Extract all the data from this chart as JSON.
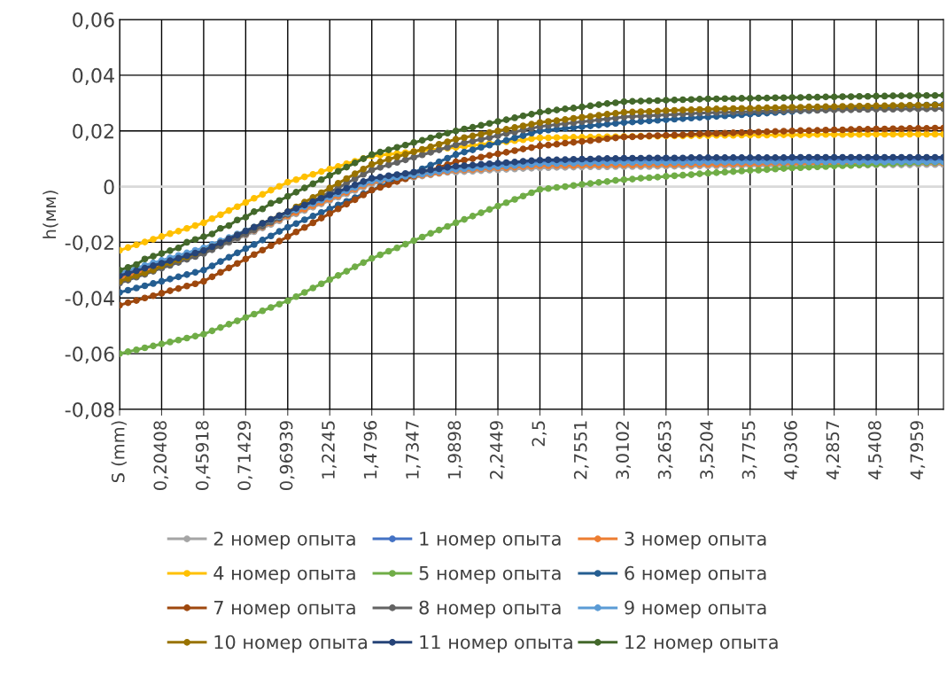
{
  "chart_data": {
    "type": "line",
    "ylabel": "h(мм)",
    "ylim": [
      -0.08,
      0.06
    ],
    "yticks": [
      {
        "value": -0.08,
        "label": "-0,08"
      },
      {
        "value": -0.06,
        "label": "-0,06"
      },
      {
        "value": -0.04,
        "label": "-0,04"
      },
      {
        "value": -0.02,
        "label": "-0,02"
      },
      {
        "value": 0,
        "label": "0"
      },
      {
        "value": 0.02,
        "label": "0,02"
      },
      {
        "value": 0.04,
        "label": "0,04"
      },
      {
        "value": 0.06,
        "label": "0,06"
      }
    ],
    "grid": true,
    "legend": "bottom",
    "marker": "circle",
    "line_style": "solid",
    "ref_lines": [
      {
        "axis": "y",
        "value": 0,
        "color": "#d9d9d9"
      }
    ],
    "categories": [
      "S (mm)",
      null,
      null,
      null,
      null,
      "0,20408",
      null,
      null,
      null,
      null,
      "0,45918",
      null,
      null,
      null,
      null,
      "0,71429",
      null,
      null,
      null,
      null,
      "0,96939",
      null,
      null,
      null,
      null,
      "1,2245",
      null,
      null,
      null,
      null,
      "1,4796",
      null,
      null,
      null,
      null,
      "1,7347",
      null,
      null,
      null,
      null,
      "1,9898",
      null,
      null,
      null,
      null,
      "2,2449",
      null,
      null,
      null,
      null,
      "2,5",
      null,
      null,
      null,
      null,
      "2,7551",
      null,
      null,
      null,
      null,
      "3,0102",
      null,
      null,
      null,
      null,
      "3,2653",
      null,
      null,
      null,
      null,
      "3,5204",
      null,
      null,
      null,
      null,
      "3,7755",
      null,
      null,
      null,
      null,
      "4,0306",
      null,
      null,
      null,
      null,
      "4,2857",
      null,
      null,
      null,
      null,
      "4,5408",
      null,
      null,
      null,
      null,
      "4,7959",
      null,
      null,
      null
    ],
    "series": [
      {
        "name": "2 номер опыта",
        "color": "#a5a5a5",
        "values": [
          -0.034,
          -0.033,
          -0.032,
          -0.031,
          -0.03,
          -0.029,
          -0.028,
          -0.027,
          -0.026,
          -0.025,
          -0.024,
          -0.0227,
          -0.0214,
          -0.0201,
          -0.0188,
          -0.0175,
          -0.0162,
          -0.0149,
          -0.0136,
          -0.0123,
          -0.011,
          -0.0098,
          -0.0086,
          -0.0074,
          -0.0062,
          -0.005,
          -0.0038,
          -0.0026,
          -0.0014,
          -0.0002,
          0.001,
          0.0015,
          0.0019,
          0.0024,
          0.0028,
          0.0033,
          0.0038,
          0.0042,
          0.0047,
          0.0051,
          0.0052,
          0.0054,
          0.0055,
          0.0057,
          0.0059,
          0.006,
          0.0062,
          0.0063,
          0.0065,
          0.0066,
          0.0067,
          0.0068,
          0.0069,
          0.0069,
          0.007,
          0.007,
          0.0071,
          0.0071,
          0.0071,
          0.0072,
          0.0072,
          0.0072,
          0.0072,
          0.0072,
          0.0073,
          0.0073,
          0.0073,
          0.0073,
          0.0073,
          0.0074,
          0.0074,
          0.0074,
          0.0074,
          0.0074,
          0.0075,
          0.0075,
          0.0075,
          0.0075,
          0.0075,
          0.0076,
          0.0076,
          0.0076,
          0.0076,
          0.0076,
          0.0076,
          0.0077,
          0.0077,
          0.0077,
          0.0077,
          0.0077,
          0.0078,
          0.0078,
          0.0078,
          0.0078,
          0.0078,
          0.0079,
          0.0079,
          0.0079,
          0.0079
        ]
      },
      {
        "name": "1 номер опыта",
        "color": "#4472c4",
        "values": [
          -0.0325,
          -0.0316,
          -0.0306,
          -0.0297,
          -0.0287,
          -0.0278,
          -0.0268,
          -0.0259,
          -0.0249,
          -0.024,
          -0.023,
          -0.0217,
          -0.0204,
          -0.019,
          -0.0177,
          -0.0164,
          -0.0151,
          -0.0138,
          -0.0124,
          -0.0111,
          -0.0098,
          -0.0086,
          -0.0074,
          -0.0062,
          -0.005,
          -0.0038,
          -0.0026,
          -0.0014,
          -0.0002,
          0.001,
          0.0022,
          0.0026,
          0.0031,
          0.0035,
          0.004,
          0.0044,
          0.0048,
          0.0053,
          0.0057,
          0.0062,
          0.0068,
          0.007,
          0.0072,
          0.0074,
          0.0076,
          0.0078,
          0.008,
          0.0082,
          0.0084,
          0.0086,
          0.0087,
          0.0088,
          0.0089,
          0.009,
          0.009,
          0.0091,
          0.0092,
          0.0092,
          0.0093,
          0.0093,
          0.0094,
          0.0094,
          0.0094,
          0.0094,
          0.0094,
          0.0094,
          0.0094,
          0.0094,
          0.0094,
          0.0094,
          0.0095,
          0.0095,
          0.0095,
          0.0095,
          0.0095,
          0.0095,
          0.0095,
          0.0095,
          0.0095,
          0.0095,
          0.0096,
          0.0096,
          0.0096,
          0.0096,
          0.0096,
          0.0096,
          0.0096,
          0.0096,
          0.0096,
          0.0096,
          0.0097,
          0.0097,
          0.0097,
          0.0097,
          0.0097,
          0.0097,
          0.0097,
          0.0097,
          0.0097
        ]
      },
      {
        "name": "3 номер опыта",
        "color": "#ed7d31",
        "values": [
          -0.033,
          -0.0321,
          -0.0311,
          -0.0302,
          -0.0292,
          -0.0283,
          -0.0273,
          -0.0264,
          -0.0254,
          -0.0245,
          -0.0235,
          -0.0222,
          -0.0209,
          -0.0196,
          -0.0183,
          -0.017,
          -0.0157,
          -0.0144,
          -0.0131,
          -0.0118,
          -0.0105,
          -0.0093,
          -0.0081,
          -0.0069,
          -0.0057,
          -0.0045,
          -0.0033,
          -0.0021,
          -0.0009,
          0.0003,
          0.0015,
          0.0019,
          0.0024,
          0.0028,
          0.0032,
          0.0037,
          0.0041,
          0.0045,
          0.0049,
          0.0054,
          0.0058,
          0.006,
          0.0061,
          0.0063,
          0.0065,
          0.0067,
          0.0068,
          0.007,
          0.0072,
          0.0073,
          0.0075,
          0.0075,
          0.0076,
          0.0076,
          0.0076,
          0.0077,
          0.0077,
          0.0077,
          0.0078,
          0.0078,
          0.0078,
          0.0078,
          0.0078,
          0.0079,
          0.0079,
          0.0079,
          0.0079,
          0.008,
          0.008,
          0.008,
          0.008,
          0.008,
          0.0081,
          0.0081,
          0.0081,
          0.0081,
          0.0081,
          0.0082,
          0.0082,
          0.0082,
          0.0082,
          0.0082,
          0.0083,
          0.0083,
          0.0083,
          0.0083,
          0.0083,
          0.0084,
          0.0084,
          0.0084,
          0.0084,
          0.0084,
          0.0084,
          0.0085,
          0.0085,
          0.0085,
          0.0085,
          0.0085,
          0.0085
        ]
      },
      {
        "name": "4 номер опыта",
        "color": "#ffc000",
        "values": [
          -0.0229,
          -0.0219,
          -0.0209,
          -0.0199,
          -0.0189,
          -0.0179,
          -0.0169,
          -0.016,
          -0.015,
          -0.014,
          -0.013,
          -0.0115,
          -0.0101,
          -0.0086,
          -0.0072,
          -0.0057,
          -0.0042,
          -0.0028,
          -0.0013,
          0.0001,
          0.0016,
          0.0025,
          0.0035,
          0.0044,
          0.0054,
          0.0063,
          0.0072,
          0.0082,
          0.0091,
          0.0101,
          0.011,
          0.0113,
          0.0116,
          0.0119,
          0.0122,
          0.0126,
          0.0129,
          0.0132,
          0.0135,
          0.0138,
          0.0141,
          0.0144,
          0.0148,
          0.0151,
          0.0155,
          0.0158,
          0.0161,
          0.0165,
          0.0168,
          0.0172,
          0.0175,
          0.0175,
          0.0176,
          0.0176,
          0.0177,
          0.0177,
          0.0178,
          0.0178,
          0.0179,
          0.0179,
          0.018,
          0.018,
          0.0181,
          0.0181,
          0.0181,
          0.0182,
          0.0182,
          0.0182,
          0.0183,
          0.0183,
          0.0183,
          0.0184,
          0.0184,
          0.0184,
          0.0185,
          0.0185,
          0.0185,
          0.0185,
          0.0186,
          0.0186,
          0.0186,
          0.0186,
          0.0186,
          0.0187,
          0.0187,
          0.0187,
          0.0187,
          0.0187,
          0.0187,
          0.0188,
          0.0188,
          0.0188,
          0.0188,
          0.0188,
          0.0188,
          0.0188,
          0.0188,
          0.0188,
          0.0188
        ]
      },
      {
        "name": "5 номер опыта",
        "color": "#70ad47",
        "values": [
          -0.06,
          -0.0593,
          -0.0586,
          -0.0579,
          -0.0572,
          -0.0565,
          -0.0558,
          -0.0551,
          -0.0544,
          -0.0537,
          -0.053,
          -0.0518,
          -0.0506,
          -0.0494,
          -0.0482,
          -0.047,
          -0.0458,
          -0.0446,
          -0.0434,
          -0.0422,
          -0.041,
          -0.0395,
          -0.038,
          -0.0364,
          -0.0349,
          -0.0334,
          -0.0319,
          -0.0304,
          -0.0288,
          -0.0273,
          -0.0258,
          -0.0245,
          -0.0232,
          -0.022,
          -0.0207,
          -0.0194,
          -0.0181,
          -0.0168,
          -0.0156,
          -0.0143,
          -0.013,
          -0.0118,
          -0.0106,
          -0.0094,
          -0.0082,
          -0.007,
          -0.0058,
          -0.0046,
          -0.0034,
          -0.0022,
          -0.001,
          -0.0007,
          -0.0003,
          0.0,
          0.0004,
          0.0008,
          0.0011,
          0.0015,
          0.0018,
          0.0022,
          0.0025,
          0.0027,
          0.003,
          0.0032,
          0.0034,
          0.0037,
          0.0039,
          0.0041,
          0.0043,
          0.0046,
          0.0048,
          0.005,
          0.0052,
          0.0054,
          0.0056,
          0.0058,
          0.0059,
          0.0061,
          0.0063,
          0.0065,
          0.0067,
          0.0068,
          0.007,
          0.0071,
          0.0072,
          0.0074,
          0.0075,
          0.0076,
          0.0078,
          0.0079,
          0.008,
          0.0081,
          0.0082,
          0.0083,
          0.0084,
          0.0085,
          0.0086,
          0.0087,
          0.0088
        ]
      },
      {
        "name": "6 номер опыта",
        "color": "#255e91",
        "values": [
          -0.038,
          -0.0372,
          -0.0364,
          -0.0356,
          -0.0348,
          -0.034,
          -0.0332,
          -0.0324,
          -0.0316,
          -0.0308,
          -0.03,
          -0.0285,
          -0.0269,
          -0.0254,
          -0.0238,
          -0.0223,
          -0.0208,
          -0.0192,
          -0.0177,
          -0.0161,
          -0.0146,
          -0.0133,
          -0.0119,
          -0.0106,
          -0.0093,
          -0.008,
          -0.0066,
          -0.0053,
          -0.004,
          -0.0026,
          -0.0013,
          0.0,
          0.0013,
          0.0025,
          0.0038,
          0.0051,
          0.0064,
          0.0077,
          0.0089,
          0.0102,
          0.0115,
          0.0124,
          0.0132,
          0.0141,
          0.0149,
          0.0158,
          0.0166,
          0.0175,
          0.0183,
          0.0192,
          0.02,
          0.0203,
          0.0206,
          0.0209,
          0.0212,
          0.0215,
          0.0218,
          0.0221,
          0.0224,
          0.0227,
          0.023,
          0.0232,
          0.0234,
          0.0236,
          0.0238,
          0.024,
          0.0242,
          0.0244,
          0.0246,
          0.0248,
          0.025,
          0.0252,
          0.0254,
          0.0256,
          0.0258,
          0.026,
          0.0262,
          0.0264,
          0.0266,
          0.0268,
          0.027,
          0.0272,
          0.0273,
          0.0275,
          0.0276,
          0.0278,
          0.0279,
          0.0281,
          0.0282,
          0.0284,
          0.0285,
          0.0286,
          0.0288,
          0.0289,
          0.029,
          0.0291,
          0.0293,
          0.0294,
          0.0295
        ]
      },
      {
        "name": "7 номер опыта",
        "color": "#9e480e",
        "values": [
          -0.0426,
          -0.0417,
          -0.0409,
          -0.04,
          -0.0392,
          -0.0383,
          -0.0374,
          -0.0366,
          -0.0357,
          -0.0349,
          -0.034,
          -0.0324,
          -0.0308,
          -0.0292,
          -0.0276,
          -0.026,
          -0.0244,
          -0.0228,
          -0.0212,
          -0.0196,
          -0.018,
          -0.0163,
          -0.0147,
          -0.013,
          -0.0113,
          -0.0097,
          -0.008,
          -0.0063,
          -0.0047,
          -0.003,
          -0.0013,
          -0.0003,
          0.0007,
          0.0018,
          0.0028,
          0.0038,
          0.0048,
          0.0058,
          0.0069,
          0.0079,
          0.0089,
          0.0095,
          0.01,
          0.0106,
          0.0112,
          0.0118,
          0.0123,
          0.0129,
          0.0135,
          0.014,
          0.0146,
          0.0149,
          0.0152,
          0.0156,
          0.0159,
          0.0162,
          0.0165,
          0.0168,
          0.0172,
          0.0175,
          0.0178,
          0.0179,
          0.018,
          0.0182,
          0.0183,
          0.0184,
          0.0185,
          0.0186,
          0.0188,
          0.0189,
          0.019,
          0.0191,
          0.0192,
          0.0193,
          0.0194,
          0.0195,
          0.0196,
          0.0197,
          0.0198,
          0.0199,
          0.02,
          0.0201,
          0.0201,
          0.0202,
          0.0203,
          0.0204,
          0.0204,
          0.0205,
          0.0206,
          0.0206,
          0.0207,
          0.0207,
          0.0208,
          0.0208,
          0.0209,
          0.0209,
          0.0209,
          0.021,
          0.021
        ]
      },
      {
        "name": "8 номер опыта",
        "color": "#636363",
        "values": [
          -0.0347,
          -0.0336,
          -0.0325,
          -0.0315,
          -0.0304,
          -0.0293,
          -0.0283,
          -0.0272,
          -0.0261,
          -0.0251,
          -0.024,
          -0.0226,
          -0.0212,
          -0.0198,
          -0.0184,
          -0.017,
          -0.0156,
          -0.0142,
          -0.0128,
          -0.0114,
          -0.01,
          -0.0084,
          -0.0068,
          -0.0052,
          -0.0036,
          -0.002,
          -0.0004,
          0.0012,
          0.0028,
          0.0044,
          0.006,
          0.0069,
          0.0078,
          0.0087,
          0.0096,
          0.0105,
          0.0114,
          0.0123,
          0.0132,
          0.0141,
          0.015,
          0.0157,
          0.0163,
          0.017,
          0.0176,
          0.0183,
          0.019,
          0.0196,
          0.0203,
          0.0209,
          0.0216,
          0.0219,
          0.0223,
          0.0226,
          0.0229,
          0.0233,
          0.0236,
          0.024,
          0.0243,
          0.0246,
          0.025,
          0.0252,
          0.0253,
          0.0255,
          0.0256,
          0.0258,
          0.0259,
          0.0261,
          0.0262,
          0.0264,
          0.0265,
          0.0266,
          0.0267,
          0.0267,
          0.0268,
          0.0269,
          0.027,
          0.0271,
          0.0271,
          0.0272,
          0.0273,
          0.0273,
          0.0274,
          0.0274,
          0.0275,
          0.0275,
          0.0276,
          0.0276,
          0.0277,
          0.0277,
          0.0278,
          0.0278,
          0.0278,
          0.0279,
          0.0279,
          0.0279,
          0.0279,
          0.028,
          0.028
        ]
      },
      {
        "name": "9 номер опыта",
        "color": "#5b9bd5",
        "values": [
          -0.031,
          -0.0301,
          -0.0292,
          -0.0283,
          -0.0274,
          -0.0265,
          -0.0256,
          -0.0247,
          -0.0238,
          -0.0229,
          -0.022,
          -0.0208,
          -0.0195,
          -0.0183,
          -0.017,
          -0.0158,
          -0.0145,
          -0.0133,
          -0.012,
          -0.0108,
          -0.0095,
          -0.0084,
          -0.0072,
          -0.0061,
          -0.0049,
          -0.0038,
          -0.0026,
          -0.0015,
          -0.0003,
          0.0009,
          0.002,
          0.0024,
          0.0028,
          0.0033,
          0.0037,
          0.0041,
          0.0045,
          0.0049,
          0.0054,
          0.0058,
          0.0062,
          0.0064,
          0.0066,
          0.0068,
          0.007,
          0.0072,
          0.0074,
          0.0076,
          0.0078,
          0.008,
          0.0082,
          0.0083,
          0.0083,
          0.0084,
          0.0084,
          0.0085,
          0.0085,
          0.0086,
          0.0086,
          0.0087,
          0.0087,
          0.0087,
          0.0087,
          0.0087,
          0.0087,
          0.0087,
          0.0087,
          0.0087,
          0.0087,
          0.0087,
          0.0088,
          0.0088,
          0.0088,
          0.0088,
          0.0088,
          0.0088,
          0.0088,
          0.0088,
          0.0088,
          0.0088,
          0.0089,
          0.0089,
          0.0089,
          0.0089,
          0.0089,
          0.0089,
          0.0089,
          0.0089,
          0.0089,
          0.0089,
          0.0089,
          0.0089,
          0.0089,
          0.0089,
          0.0089,
          0.0089,
          0.0089,
          0.0089,
          0.0089
        ]
      },
      {
        "name": "10 номер опыта",
        "color": "#997300",
        "values": [
          -0.034,
          -0.033,
          -0.032,
          -0.031,
          -0.03,
          -0.0285,
          -0.0274,
          -0.0263,
          -0.0252,
          -0.0241,
          -0.023,
          -0.0216,
          -0.0202,
          -0.0188,
          -0.0174,
          -0.016,
          -0.0146,
          -0.0132,
          -0.0118,
          -0.0104,
          -0.009,
          -0.0073,
          -0.0056,
          -0.0039,
          -0.0022,
          -0.0005,
          0.0012,
          0.0029,
          0.0046,
          0.0063,
          0.008,
          0.0089,
          0.0098,
          0.0107,
          0.0116,
          0.0125,
          0.0134,
          0.0143,
          0.0152,
          0.0161,
          0.017,
          0.0176,
          0.0182,
          0.0188,
          0.0194,
          0.02,
          0.0206,
          0.0212,
          0.0218,
          0.0224,
          0.023,
          0.0234,
          0.0237,
          0.0241,
          0.0245,
          0.0249,
          0.0252,
          0.0256,
          0.026,
          0.0263,
          0.0267,
          0.0268,
          0.0269,
          0.027,
          0.0271,
          0.0273,
          0.0274,
          0.0275,
          0.0276,
          0.0277,
          0.0278,
          0.0279,
          0.0279,
          0.028,
          0.0281,
          0.0281,
          0.0282,
          0.0283,
          0.0283,
          0.0284,
          0.0285,
          0.0285,
          0.0286,
          0.0286,
          0.0287,
          0.0287,
          0.0288,
          0.0288,
          0.0289,
          0.0289,
          0.029,
          0.029,
          0.0291,
          0.0291,
          0.0292,
          0.0292,
          0.0292,
          0.0293,
          0.0293
        ]
      },
      {
        "name": "11 номер опыта",
        "color": "#264478",
        "values": [
          -0.032,
          -0.0311,
          -0.0302,
          -0.0293,
          -0.0284,
          -0.0275,
          -0.0266,
          -0.0257,
          -0.0248,
          -0.0239,
          -0.023,
          -0.0216,
          -0.0202,
          -0.0188,
          -0.0174,
          -0.016,
          -0.0146,
          -0.0132,
          -0.0118,
          -0.0104,
          -0.009,
          -0.0078,
          -0.0066,
          -0.0054,
          -0.0042,
          -0.003,
          -0.0018,
          -0.0006,
          0.0006,
          0.0018,
          0.003,
          0.0034,
          0.0039,
          0.0043,
          0.0047,
          0.0052,
          0.0056,
          0.006,
          0.0064,
          0.0069,
          0.0073,
          0.0075,
          0.0077,
          0.008,
          0.0082,
          0.0084,
          0.0086,
          0.0088,
          0.0091,
          0.0093,
          0.0095,
          0.0096,
          0.0096,
          0.0097,
          0.0098,
          0.0099,
          0.0099,
          0.01,
          0.0101,
          0.0101,
          0.0102,
          0.0102,
          0.0102,
          0.0103,
          0.0103,
          0.0103,
          0.0103,
          0.0103,
          0.0104,
          0.0104,
          0.0104,
          0.0104,
          0.0104,
          0.0104,
          0.0104,
          0.0104,
          0.0104,
          0.0104,
          0.0104,
          0.0104,
          0.0105,
          0.0105,
          0.0105,
          0.0105,
          0.0105,
          0.0105,
          0.0105,
          0.0105,
          0.0105,
          0.0105,
          0.0105,
          0.0105,
          0.0105,
          0.0105,
          0.0105,
          0.0105,
          0.0105,
          0.0105,
          0.0105
        ]
      },
      {
        "name": "12 номер опыта",
        "color": "#43682b",
        "values": [
          -0.03,
          -0.029,
          -0.028,
          -0.026,
          -0.025,
          -0.024,
          -0.023,
          -0.022,
          -0.02,
          -0.019,
          -0.018,
          -0.017,
          -0.015,
          -0.014,
          -0.012,
          -0.011,
          -0.009,
          -0.008,
          -0.006,
          -0.005,
          -0.0035,
          -0.002,
          -0.0005,
          0.001,
          0.0025,
          0.004,
          0.0055,
          0.007,
          0.0085,
          0.01,
          0.0115,
          0.0124,
          0.0132,
          0.0141,
          0.0149,
          0.0158,
          0.0166,
          0.0175,
          0.0183,
          0.0192,
          0.02,
          0.0207,
          0.0213,
          0.022,
          0.0227,
          0.0234,
          0.024,
          0.0247,
          0.0254,
          0.026,
          0.0267,
          0.0271,
          0.0275,
          0.0279,
          0.0282,
          0.0286,
          0.029,
          0.0294,
          0.0298,
          0.0301,
          0.0305,
          0.0306,
          0.0307,
          0.0308,
          0.0309,
          0.031,
          0.0311,
          0.0312,
          0.0313,
          0.0314,
          0.0315,
          0.0315,
          0.0316,
          0.0316,
          0.0317,
          0.0317,
          0.0318,
          0.0318,
          0.0319,
          0.0319,
          0.032,
          0.032,
          0.0321,
          0.0321,
          0.0322,
          0.0322,
          0.0323,
          0.0323,
          0.0324,
          0.0324,
          0.0325,
          0.0325,
          0.0326,
          0.0326,
          0.0326,
          0.0327,
          0.0327,
          0.0327,
          0.0328
        ]
      }
    ]
  }
}
